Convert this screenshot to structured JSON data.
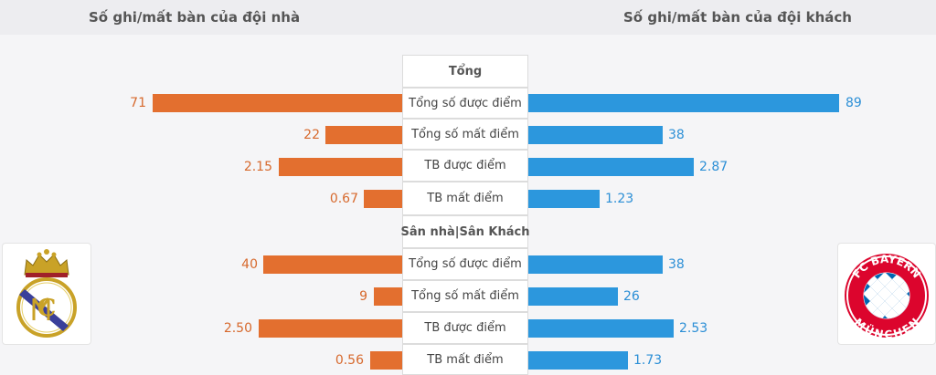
{
  "header": {
    "home_title": "Số ghi/mất bàn của đội nhà",
    "away_title": "Số ghi/mất bàn của đội khách"
  },
  "sections": {
    "total": "Tổng",
    "home_away": "Sân nhà|Sân Khách"
  },
  "rows": [
    {
      "label": "Tổng số được điểm",
      "home": "71",
      "away": "89"
    },
    {
      "label": "Tổng số mất điểm",
      "home": "22",
      "away": "38"
    },
    {
      "label": "TB được điểm",
      "home": "2.15",
      "away": "2.87"
    },
    {
      "label": "TB mất điểm",
      "home": "0.67",
      "away": "1.23"
    },
    {
      "label": "Tổng số được điểm",
      "home": "40",
      "away": "38"
    },
    {
      "label": "Tổng số mất điểm",
      "home": "9",
      "away": "26"
    },
    {
      "label": "TB được điểm",
      "home": "2.50",
      "away": "2.53"
    },
    {
      "label": "TB mất điểm",
      "home": "0.56",
      "away": "1.73"
    }
  ],
  "logos": {
    "home_icon": "real-madrid-crest-icon",
    "away_icon": "fc-bayern-munchen-crest-icon",
    "away_logo_text_top": "FC BAYERN",
    "away_logo_text_bottom": "MÜNCHEN"
  },
  "colors": {
    "home": "#e36f2f",
    "away": "#2c97dd"
  }
}
